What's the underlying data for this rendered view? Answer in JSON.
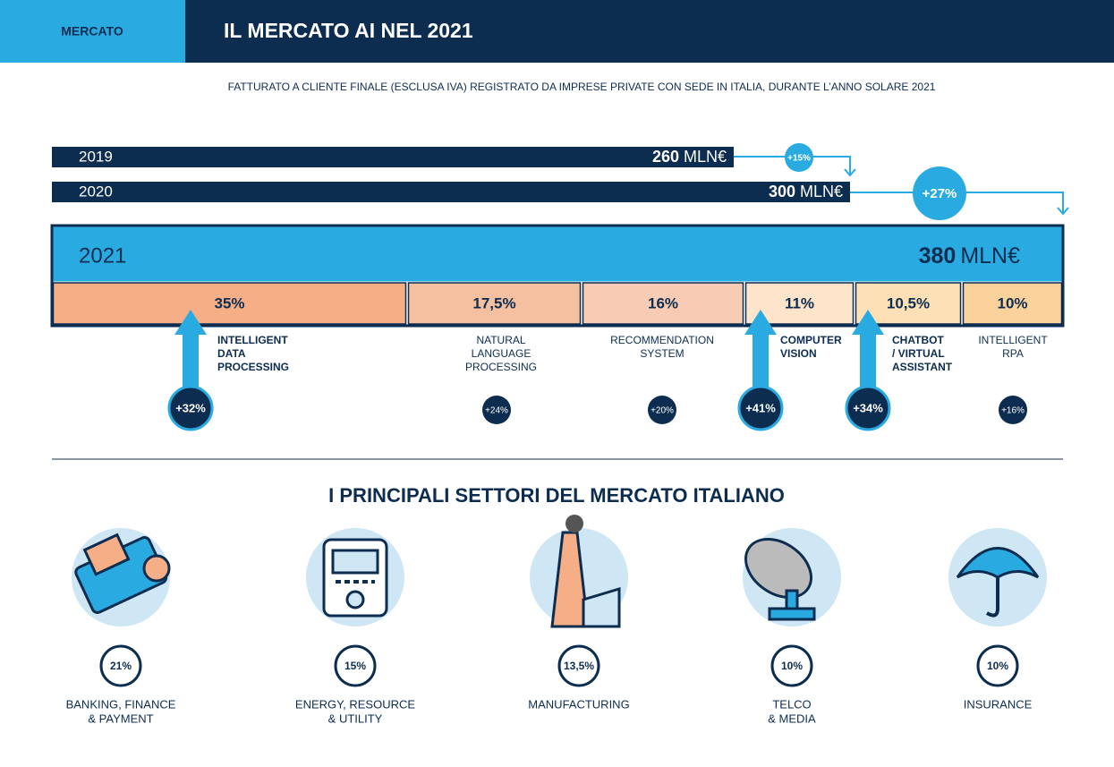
{
  "header": {
    "tag": "MERCATO",
    "title": "IL MERCATO AI NEL 2021"
  },
  "subtitle": "FATTURATO A CLIENTE FINALE (ESCLUSA IVA) REGISTRATO DA IMPRESE PRIVATE CON SEDE IN ITALIA, DURANTE L’ANNO SOLARE 2021",
  "years": [
    {
      "year": "2019",
      "amount": "260",
      "unit": "MLN€"
    },
    {
      "year": "2020",
      "amount": "300",
      "unit": "MLN€"
    },
    {
      "year": "2021",
      "amount": "380",
      "unit": "MLN€"
    }
  ],
  "growth": [
    "+15%",
    "+27%"
  ],
  "segments": [
    {
      "share": "35%",
      "label": [
        "INTELLIGENT",
        "DATA",
        "PROCESSING"
      ],
      "growth": "+32%"
    },
    {
      "share": "17,5%",
      "label": [
        "NATURAL",
        "LANGUAGE",
        "PROCESSING"
      ],
      "growth": "+24%"
    },
    {
      "share": "16%",
      "label": [
        "RECOMMENDATION",
        "SYSTEM"
      ],
      "growth": "+20%"
    },
    {
      "share": "11%",
      "label": [
        "COMPUTER",
        "VISION"
      ],
      "growth": "+41%"
    },
    {
      "share": "10,5%",
      "label": [
        "CHATBOT",
        "/ VIRTUAL",
        "ASSISTANT"
      ],
      "growth": "+34%"
    },
    {
      "share": "10%",
      "label": [
        "INTELLIGENT",
        "RPA"
      ],
      "growth": "+16%"
    }
  ],
  "sectors_title": "I PRINCIPALI SETTORI DEL MERCATO ITALIANO",
  "sectors": [
    {
      "share": "21%",
      "label": [
        "BANKING, FINANCE",
        "& PAYMENT"
      ]
    },
    {
      "share": "15%",
      "label": [
        "ENERGY, RESOURCE",
        "& UTILITY"
      ]
    },
    {
      "share": "13,5%",
      "label": [
        "MANUFACTURING"
      ]
    },
    {
      "share": "10%",
      "label": [
        "TELCO",
        "& MEDIA"
      ]
    },
    {
      "share": "10%",
      "label": [
        "INSURANCE"
      ]
    }
  ]
}
